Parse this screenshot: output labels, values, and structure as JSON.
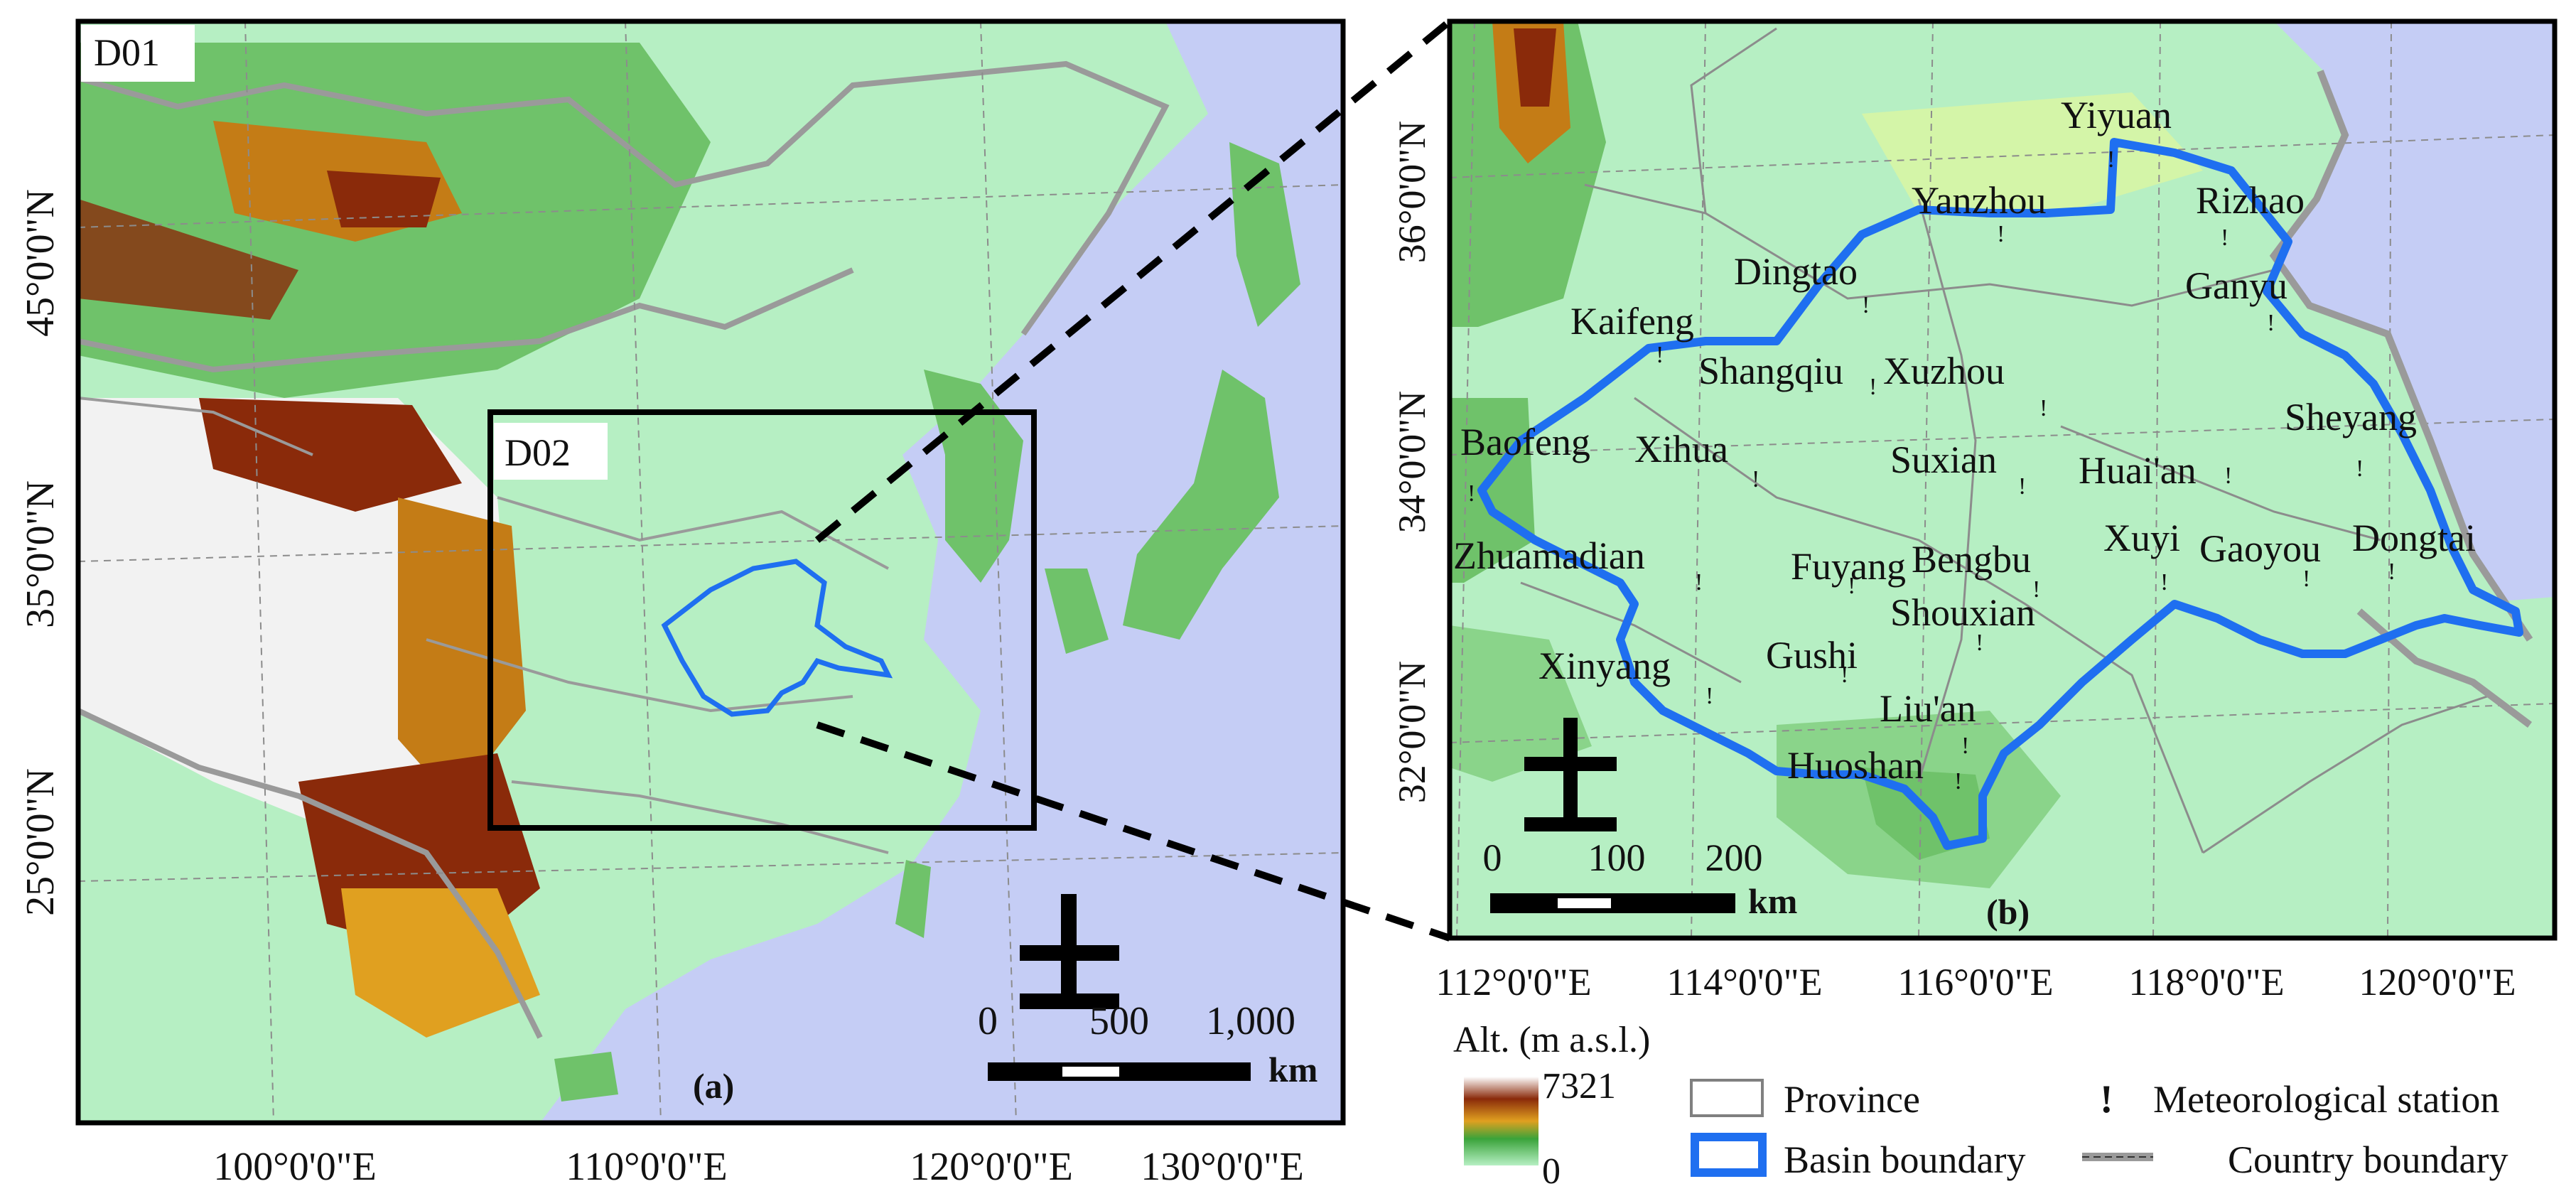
{
  "panel_a": {
    "domain_d01": "D01",
    "domain_d02": "D02",
    "panel_label": "(a)",
    "lat_labels": [
      "45°0'0\"N",
      "35°0'0\"N",
      "25°0'0\"N"
    ],
    "lon_labels": [
      "100°0'0\"E",
      "110°0'0\"E",
      "120°0'0\"E",
      "130°0'0\"E"
    ],
    "scale": {
      "ticks": [
        "0",
        "500",
        "1,000"
      ],
      "unit": "km"
    }
  },
  "panel_b": {
    "panel_label": "(b)",
    "lat_labels": [
      "36°0'0\"N",
      "34°0'0\"N",
      "32°0'0\"N"
    ],
    "lon_labels": [
      "112°0'0\"E",
      "114°0'0\"E",
      "116°0'0\"E",
      "118°0'0\"E",
      "120°0'0\"E"
    ],
    "scale": {
      "ticks": [
        "0",
        "100",
        "200"
      ],
      "unit": "km"
    },
    "stations": [
      "Yiyuan",
      "Yanzhou",
      "Rizhao",
      "Dingtao",
      "Ganyu",
      "Kaifeng",
      "Shangqiu",
      "Xuzhou",
      "Sheyang",
      "Baofeng",
      "Xihua",
      "Suxian",
      "Huai'an",
      "Zhuamadian",
      "Fuyang",
      "Bengbu",
      "Xuyi",
      "Gaoyou",
      "Dongtai",
      "Shouxian",
      "Gushi",
      "Xinyang",
      "Liu'an",
      "Huoshan"
    ]
  },
  "legend": {
    "alt_title": "Alt. (m a.s.l.)",
    "alt_max": "7321",
    "alt_min": "0",
    "province": "Province",
    "basin": "Basin boundary",
    "station": "Meteorological station",
    "station_symbol": "!",
    "country": "Country boundary"
  },
  "colors": {
    "sea": "#c5cdf5",
    "lowland": "#b6efc3",
    "hills": "#6fc26a",
    "mountains": "#c47c16",
    "high": "#8a2a0a",
    "snow": "#f2f2f2",
    "basin": "#1f6ff0"
  }
}
